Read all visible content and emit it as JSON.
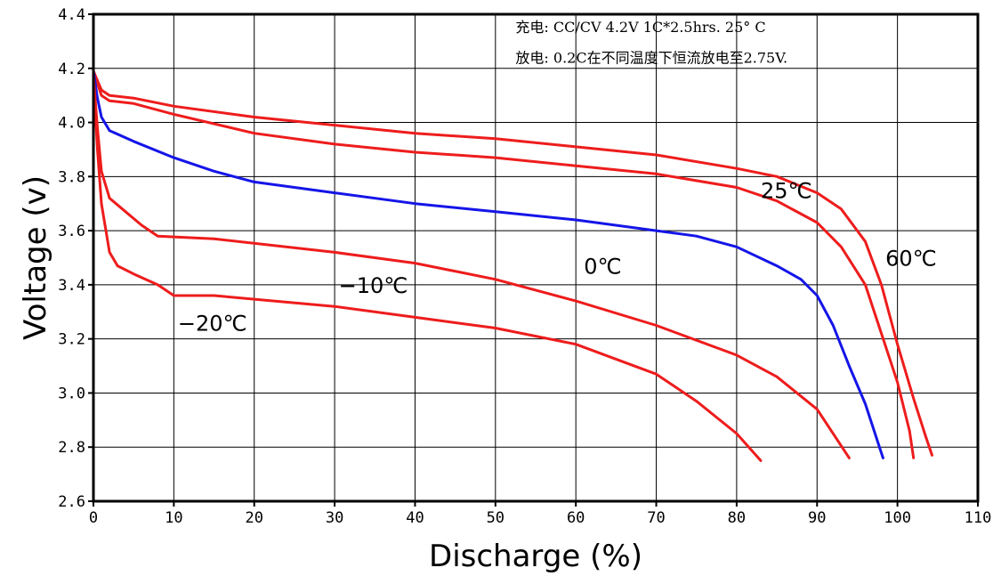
{
  "chart_data": {
    "type": "line",
    "xlabel": "Discharge (%)",
    "ylabel": "Voltage (v)",
    "xlim": [
      0,
      110
    ],
    "ylim": [
      2.6,
      4.4
    ],
    "x_ticks": [
      "0",
      "10",
      "20",
      "30",
      "40",
      "50",
      "60",
      "70",
      "80",
      "90",
      "100",
      "110"
    ],
    "y_ticks": [
      "2.6",
      "2.8",
      "3.0",
      "3.2",
      "3.4",
      "3.6",
      "3.8",
      "4.0",
      "4.2",
      "4.4"
    ],
    "grid": true,
    "annotations": [
      "充电: CC/CV 4.2V 1C*2.5hrs.  25° C",
      "放电: 0.2C在不同温度下恒流放电至2.75V."
    ],
    "series": [
      {
        "name": "60℃",
        "color": "#ee1c1c",
        "points": [
          [
            0,
            4.19
          ],
          [
            1,
            4.12
          ],
          [
            2,
            4.1
          ],
          [
            5,
            4.09
          ],
          [
            10,
            4.06
          ],
          [
            20,
            4.02
          ],
          [
            30,
            3.99
          ],
          [
            40,
            3.96
          ],
          [
            50,
            3.94
          ],
          [
            60,
            3.91
          ],
          [
            70,
            3.88
          ],
          [
            80,
            3.83
          ],
          [
            85,
            3.8
          ],
          [
            90,
            3.74
          ],
          [
            93,
            3.68
          ],
          [
            96,
            3.56
          ],
          [
            98,
            3.4
          ],
          [
            100,
            3.18
          ],
          [
            102,
            2.98
          ],
          [
            103.5,
            2.84
          ],
          [
            104.3,
            2.77
          ]
        ]
      },
      {
        "name": "25℃",
        "color": "#ee1c1c",
        "points": [
          [
            0,
            4.19
          ],
          [
            1,
            4.1
          ],
          [
            2,
            4.08
          ],
          [
            5,
            4.07
          ],
          [
            10,
            4.03
          ],
          [
            20,
            3.96
          ],
          [
            30,
            3.92
          ],
          [
            40,
            3.89
          ],
          [
            50,
            3.87
          ],
          [
            60,
            3.84
          ],
          [
            70,
            3.81
          ],
          [
            80,
            3.76
          ],
          [
            85,
            3.71
          ],
          [
            90,
            3.63
          ],
          [
            93,
            3.54
          ],
          [
            96,
            3.4
          ],
          [
            98,
            3.22
          ],
          [
            100,
            3.04
          ],
          [
            101.5,
            2.86
          ],
          [
            102,
            2.76
          ]
        ]
      },
      {
        "name": "0℃",
        "color": "#1515e8",
        "points": [
          [
            0,
            4.19
          ],
          [
            0.5,
            4.09
          ],
          [
            1,
            4.02
          ],
          [
            2,
            3.97
          ],
          [
            5,
            3.93
          ],
          [
            10,
            3.87
          ],
          [
            15,
            3.82
          ],
          [
            20,
            3.78
          ],
          [
            30,
            3.74
          ],
          [
            40,
            3.7
          ],
          [
            50,
            3.67
          ],
          [
            60,
            3.64
          ],
          [
            70,
            3.6
          ],
          [
            75,
            3.58
          ],
          [
            80,
            3.54
          ],
          [
            85,
            3.47
          ],
          [
            88,
            3.42
          ],
          [
            90,
            3.36
          ],
          [
            92,
            3.25
          ],
          [
            94,
            3.1
          ],
          [
            96,
            2.96
          ],
          [
            98.2,
            2.76
          ]
        ]
      },
      {
        "name": "-10℃",
        "color": "#ee1c1c",
        "points": [
          [
            0,
            4.17
          ],
          [
            0.5,
            3.98
          ],
          [
            1,
            3.82
          ],
          [
            2,
            3.72
          ],
          [
            4,
            3.67
          ],
          [
            6,
            3.62
          ],
          [
            8,
            3.58
          ],
          [
            15,
            3.57
          ],
          [
            30,
            3.52
          ],
          [
            40,
            3.48
          ],
          [
            50,
            3.42
          ],
          [
            60,
            3.34
          ],
          [
            70,
            3.25
          ],
          [
            80,
            3.14
          ],
          [
            85,
            3.06
          ],
          [
            90,
            2.94
          ],
          [
            94,
            2.76
          ]
        ]
      },
      {
        "name": "-20℃",
        "color": "#ee1c1c",
        "points": [
          [
            0,
            4.17
          ],
          [
            0.5,
            3.9
          ],
          [
            1,
            3.7
          ],
          [
            2,
            3.52
          ],
          [
            3,
            3.47
          ],
          [
            5,
            3.44
          ],
          [
            8,
            3.4
          ],
          [
            10,
            3.36
          ],
          [
            15,
            3.36
          ],
          [
            30,
            3.32
          ],
          [
            40,
            3.28
          ],
          [
            50,
            3.24
          ],
          [
            60,
            3.18
          ],
          [
            70,
            3.07
          ],
          [
            75,
            2.97
          ],
          [
            80,
            2.85
          ],
          [
            83,
            2.75
          ]
        ]
      }
    ],
    "series_labels": [
      {
        "text": "25℃",
        "x": 83,
        "y": 3.72
      },
      {
        "text": "60℃",
        "x": 98.5,
        "y": 3.47
      },
      {
        "text": "0℃",
        "x": 61,
        "y": 3.44
      },
      {
        "text": "−10℃",
        "x": 30.5,
        "y": 3.37
      },
      {
        "text": "−20℃",
        "x": 10.5,
        "y": 3.23
      }
    ]
  }
}
